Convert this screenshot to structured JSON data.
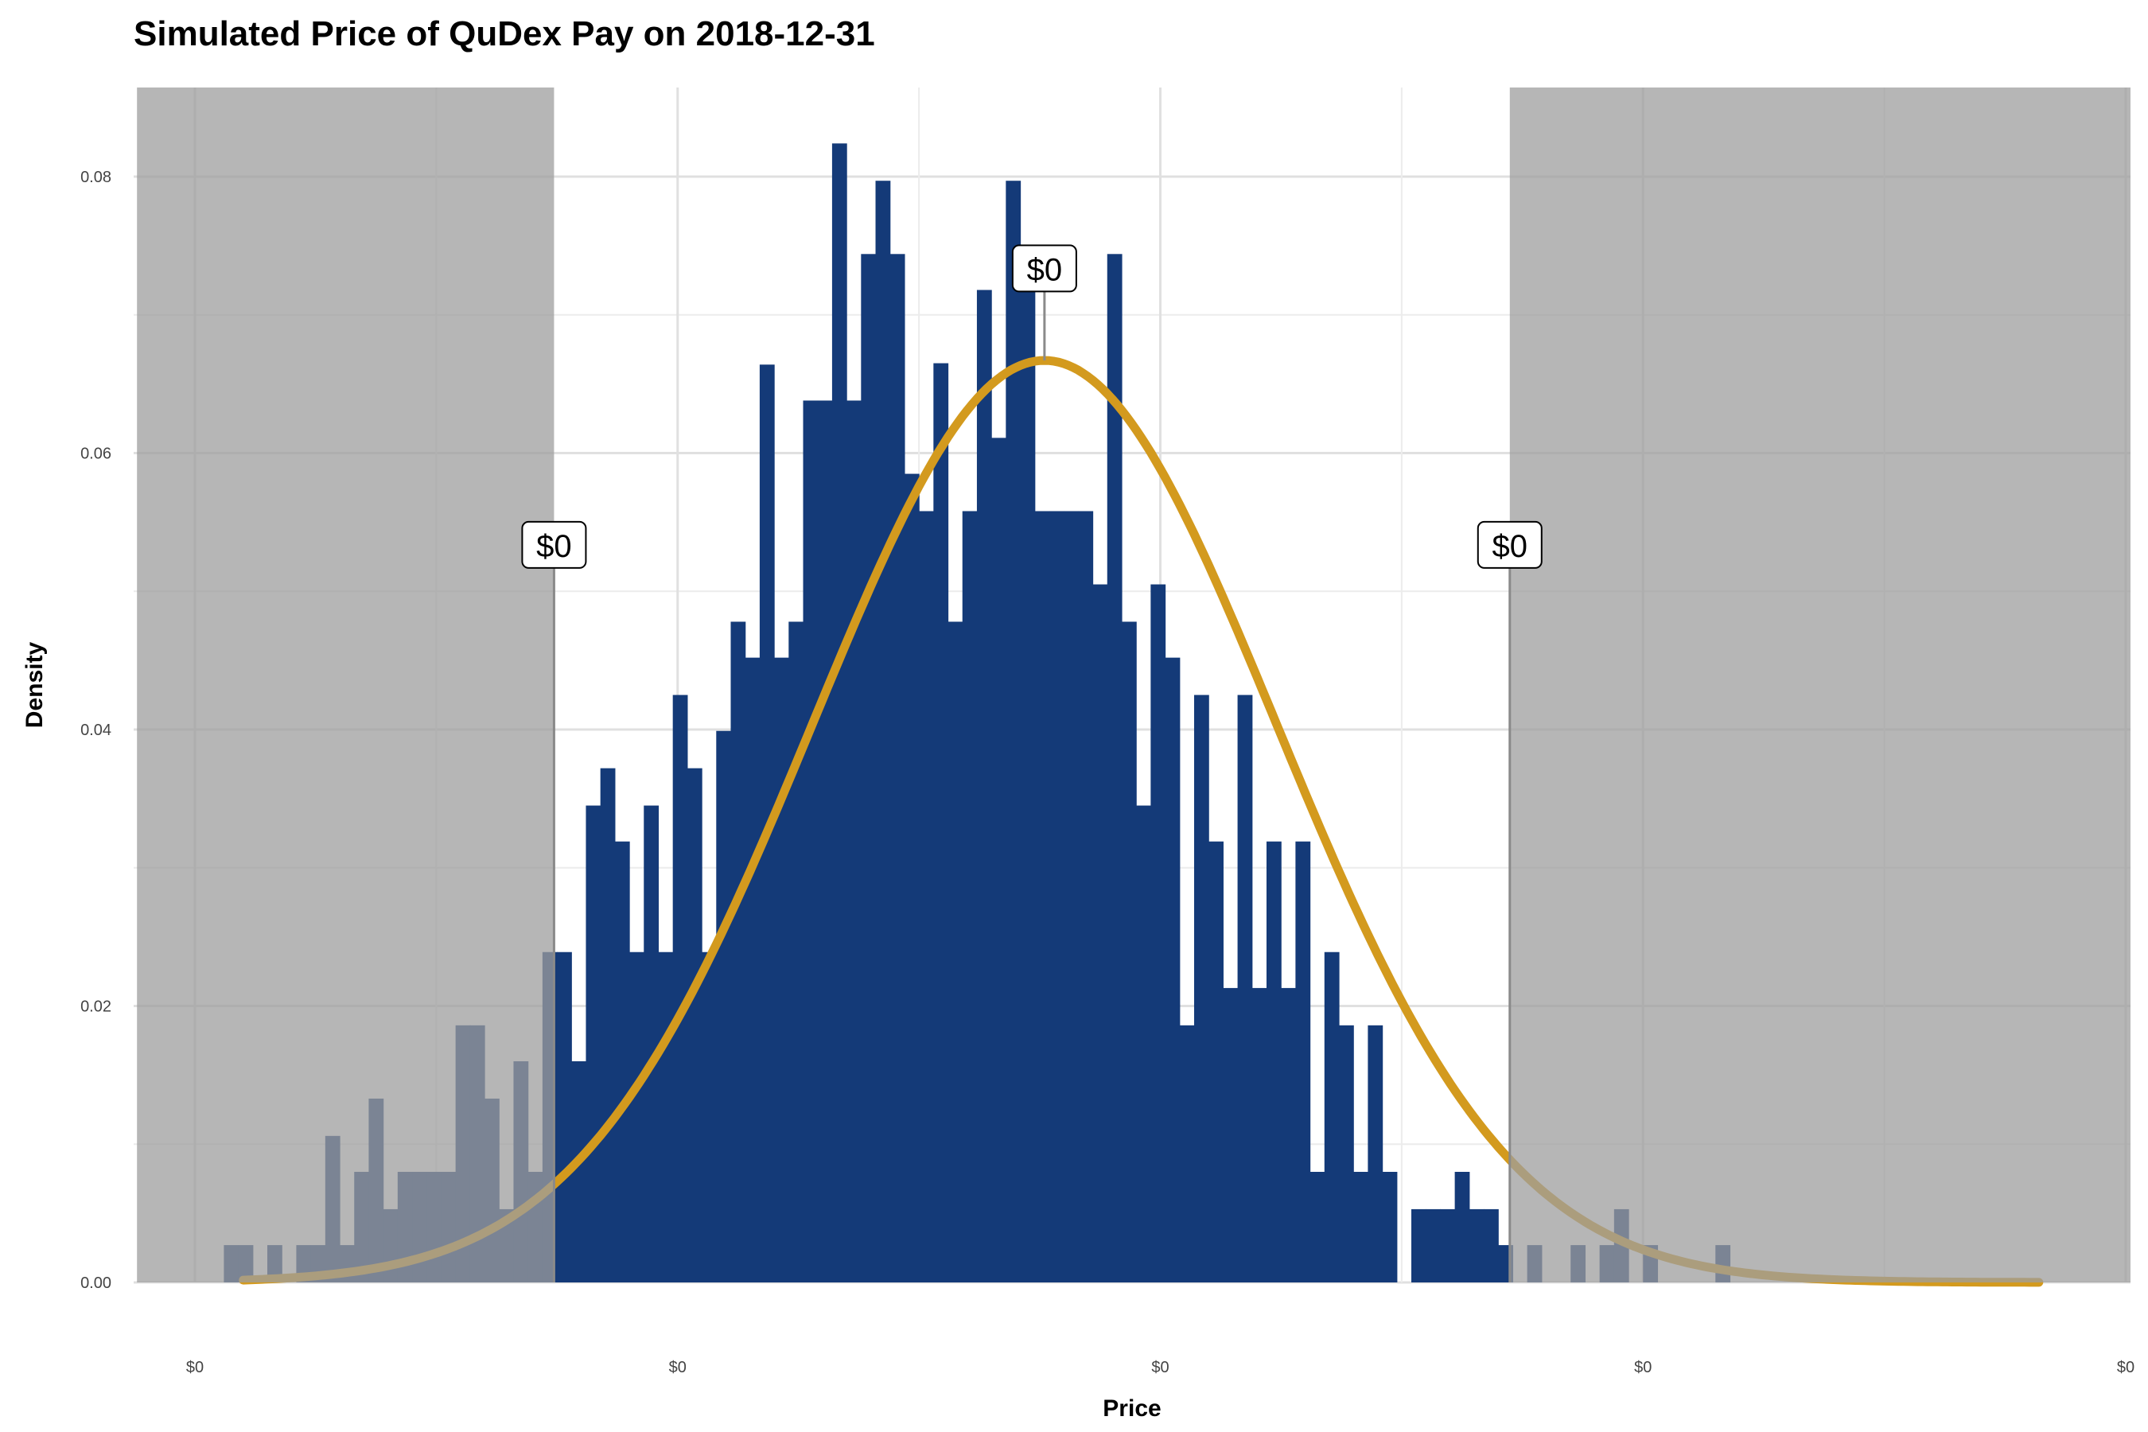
{
  "chart_data": {
    "type": "bar",
    "title": "Simulated Price of QuDex Pay on 2018-12-31",
    "xlabel": "Price",
    "ylabel": "Density",
    "x_ticks": [
      "$0",
      "$0",
      "$0",
      "$0",
      "$0"
    ],
    "y_ticks": [
      "0.00",
      "0.02",
      "0.04",
      "0.06",
      "0.08"
    ],
    "ylim": [
      0,
      0.086
    ],
    "xlim": [
      0,
      100
    ],
    "grid": true,
    "legend": "none",
    "series": [
      {
        "type": "histogram",
        "color": "#143a78",
        "bin_width": 0.75,
        "values": [
          0.0027,
          0.0027,
          0,
          0.0027,
          0,
          0.0027,
          0.0027,
          0.0106,
          0.0027,
          0.008,
          0.0133,
          0.0053,
          0.008,
          0.008,
          0.008,
          0.008,
          0.0186,
          0.0186,
          0.0133,
          0.0053,
          0.016,
          0.008,
          0.0239,
          0.0239,
          0.016,
          0.0345,
          0.0372,
          0.0319,
          0.0239,
          0.0345,
          0.0239,
          0.0425,
          0.0372,
          0.0239,
          0.0399,
          0.0478,
          0.0452,
          0.0664,
          0.0452,
          0.0478,
          0.0638,
          0.0638,
          0.0824,
          0.0638,
          0.0744,
          0.0797,
          0.0744,
          0.0585,
          0.0558,
          0.0665,
          0.0478,
          0.0558,
          0.0718,
          0.0611,
          0.0797,
          0.0718,
          0.0558,
          0.0558,
          0.0558,
          0.0558,
          0.0505,
          0.0744,
          0.0478,
          0.0345,
          0.0505,
          0.0452,
          0.0186,
          0.0425,
          0.0319,
          0.0213,
          0.0425,
          0.0213,
          0.0319,
          0.0213,
          0.0319,
          0.008,
          0.0239,
          0.0186,
          0.008,
          0.0186,
          0.008,
          0,
          0.0053,
          0.0053,
          0.0053,
          0.008,
          0.0053,
          0.0053,
          0.0027,
          0,
          0.0027,
          0,
          0,
          0.0027,
          0,
          0.0027,
          0.0053,
          0,
          0.0027,
          0,
          0,
          0,
          0,
          0.0027
        ]
      },
      {
        "type": "density-curve",
        "color": "#d39a1e",
        "distribution": "normal",
        "mean": 44,
        "sd": 12
      }
    ],
    "shaded_regions": [
      {
        "from": -3,
        "to": 18.6,
        "color": "#9e9e9e"
      },
      {
        "from": 68.1,
        "to": 103,
        "color": "#9e9e9e"
      }
    ],
    "annotations": [
      {
        "x": 18.6,
        "label_y": 0.0533,
        "label": "$0"
      },
      {
        "x": 44.0,
        "label_y": 0.0733,
        "label": "$0"
      },
      {
        "x": 68.1,
        "label_y": 0.0533,
        "label": "$0"
      }
    ]
  }
}
